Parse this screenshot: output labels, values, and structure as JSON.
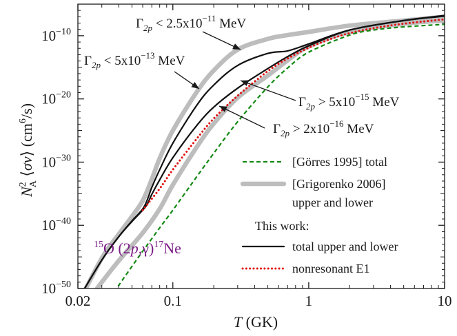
{
  "chart_data": {
    "type": "line",
    "title": "",
    "xlabel": "T  (GK)",
    "ylabel": "N_A^2 ⟨σv⟩  (cm^6/s)",
    "xscale": "log",
    "yscale": "log",
    "xlim": [
      0.02,
      10
    ],
    "ylim": [
      1e-50,
      1e-05
    ],
    "grid": false,
    "legend_position": "lower-right",
    "x_ticks": [
      {
        "value": 0.02,
        "label": "0.02"
      },
      {
        "value": 0.1,
        "label": "0.1"
      },
      {
        "value": 1,
        "label": "1"
      },
      {
        "value": 10,
        "label": "10"
      }
    ],
    "y_ticks": [
      {
        "value": 1e-50,
        "mant": "10",
        "exp": "−50"
      },
      {
        "value": 1e-40,
        "mant": "10",
        "exp": "−40"
      },
      {
        "value": 1e-30,
        "mant": "10",
        "exp": "−30"
      },
      {
        "value": 1e-20,
        "mant": "10",
        "exp": "−20"
      },
      {
        "value": 1e-10,
        "mant": "10",
        "exp": "−10"
      }
    ],
    "reaction_label": {
      "pre_sup": "15",
      "main": "O (2p,γ)",
      "post_sup": "17",
      "post": "Ne"
    },
    "annotations": [
      {
        "id": "a1",
        "greek": "Γ",
        "sub": "2p",
        "rel": " < 2.5x10",
        "exp": "−11",
        "unit": " MeV"
      },
      {
        "id": "a2",
        "greek": "Γ",
        "sub": "2p",
        "rel": " < 5x10",
        "exp": "−13",
        "unit": " MeV"
      },
      {
        "id": "a3",
        "greek": "Γ",
        "sub": "2p",
        "rel": " > 5x10",
        "exp": "−15",
        "unit": " MeV"
      },
      {
        "id": "a4",
        "greek": "Γ",
        "sub": "2p",
        "rel": " > 2x10",
        "exp": "−16",
        "unit": " MeV"
      }
    ],
    "legend": {
      "entries": [
        {
          "label": "[Görres 1995] total",
          "style": "green-dashed"
        },
        {
          "label": "[Grigorenko 2006]",
          "label2": "upper and lower",
          "style": "gray-thick"
        },
        {
          "header": "This work:"
        },
        {
          "label": "total upper and lower",
          "style": "black"
        },
        {
          "label": "nonresonant E1",
          "style": "red-dotted"
        }
      ]
    },
    "series": [
      {
        "name": "[Grigorenko 2006] upper",
        "style": "gray-thick",
        "x": [
          0.02,
          0.03,
          0.04,
          0.05,
          0.06,
          0.07,
          0.08,
          0.1,
          0.15,
          0.2,
          0.3,
          0.5,
          0.7,
          1.0,
          2.0,
          5.0,
          10.0
        ],
        "log10y": [
          -52.5,
          -45.2,
          -41.4,
          -38.6,
          -36.1,
          -32.7,
          -29.4,
          -25.0,
          -18.9,
          -15.5,
          -12.2,
          -10.5,
          -9.9,
          -9.4,
          -8.4,
          -7.6,
          -7.0
        ]
      },
      {
        "name": "[Grigorenko 2006] lower",
        "style": "gray-thick",
        "x": [
          0.025,
          0.03,
          0.04,
          0.06,
          0.08,
          0.1,
          0.15,
          0.2,
          0.3,
          0.5,
          0.7,
          1.0,
          2.0,
          5.0,
          10.0
        ],
        "log10y": [
          -51.3,
          -49.0,
          -45.6,
          -41.2,
          -37.4,
          -33.6,
          -27.6,
          -23.9,
          -19.8,
          -16.3,
          -13.9,
          -11.7,
          -9.4,
          -8.1,
          -7.6
        ]
      },
      {
        "name": "This work total upper",
        "style": "black",
        "x": [
          0.02,
          0.03,
          0.04,
          0.05,
          0.06,
          0.065,
          0.07,
          0.08,
          0.1,
          0.15,
          0.2,
          0.3,
          0.5,
          0.7,
          1.0,
          2.0,
          5.0,
          10.0
        ],
        "log10y": [
          -51.8,
          -45.5,
          -41.8,
          -39.3,
          -37.4,
          -35.9,
          -34.0,
          -31.2,
          -27.0,
          -21.0,
          -17.8,
          -14.7,
          -12.8,
          -12.4,
          -11.3,
          -9.1,
          -7.6,
          -6.8
        ]
      },
      {
        "name": "This work total lower",
        "style": "black",
        "x": [
          0.02,
          0.03,
          0.04,
          0.05,
          0.06,
          0.065,
          0.07,
          0.08,
          0.1,
          0.15,
          0.2,
          0.3,
          0.5,
          0.7,
          1.0,
          2.0,
          5.0,
          10.0
        ],
        "log10y": [
          -51.8,
          -45.5,
          -41.8,
          -39.4,
          -37.6,
          -36.6,
          -35.1,
          -32.8,
          -29.3,
          -24.2,
          -21.3,
          -18.3,
          -15.2,
          -13.3,
          -11.6,
          -9.1,
          -7.6,
          -6.9
        ]
      },
      {
        "name": "nonresonant E1",
        "style": "red-dotted",
        "x": [
          0.06,
          0.08,
          0.1,
          0.15,
          0.2,
          0.3,
          0.5,
          0.7,
          1.0,
          1.5,
          2.0,
          3.0,
          5.0,
          10.0
        ],
        "log10y": [
          -37.6,
          -34.2,
          -31.2,
          -26.3,
          -23.1,
          -19.5,
          -15.6,
          -13.6,
          -11.9,
          -10.4,
          -9.6,
          -8.8,
          -8.1,
          -7.4
        ]
      },
      {
        "name": "[Görres 1995] total",
        "style": "green-dashed",
        "x": [
          0.035,
          0.04,
          0.05,
          0.06,
          0.08,
          0.1,
          0.15,
          0.2,
          0.3,
          0.5,
          0.7,
          1.0,
          2.0,
          3.0,
          5.0,
          10.0
        ],
        "log10y": [
          -51.5,
          -49.5,
          -46.5,
          -44.1,
          -40.4,
          -37.6,
          -32.3,
          -28.6,
          -23.6,
          -18.1,
          -15.1,
          -12.6,
          -9.9,
          -9.1,
          -8.6,
          -8.2
        ]
      }
    ]
  }
}
